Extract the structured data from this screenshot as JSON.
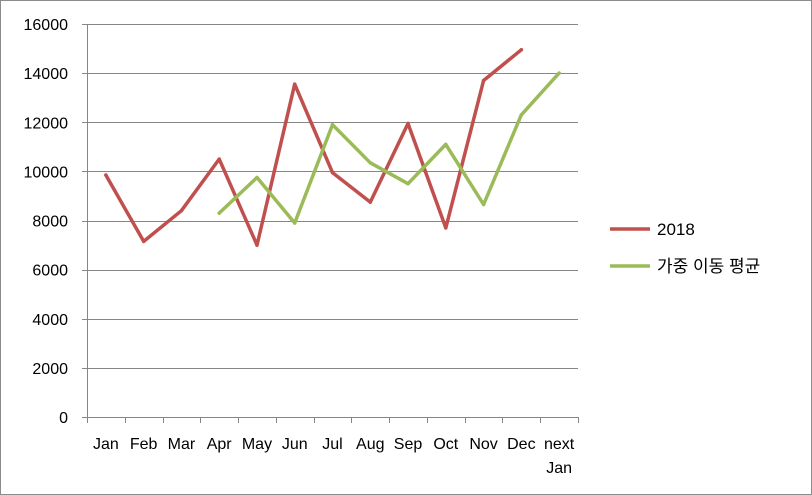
{
  "chart_data": {
    "type": "line",
    "categories": [
      "Jan",
      "Feb",
      "Mar",
      "Apr",
      "May",
      "Jun",
      "Jul",
      "Aug",
      "Sep",
      "Oct",
      "Nov",
      "Dec",
      "next Jan"
    ],
    "series": [
      {
        "name": "2018",
        "color": "#c0504d",
        "values": [
          9850,
          7150,
          8400,
          10500,
          7000,
          13550,
          9950,
          8750,
          11950,
          7700,
          13700,
          14950,
          null
        ]
      },
      {
        "name": "가중 이동 평균",
        "color": "#9bbb59",
        "values": [
          null,
          null,
          null,
          8300,
          9750,
          7900,
          11900,
          10350,
          9500,
          11100,
          8650,
          12300,
          14000
        ]
      }
    ],
    "y_ticks": [
      "0",
      "2000",
      "4000",
      "6000",
      "8000",
      "10000",
      "12000",
      "14000",
      "16000"
    ],
    "ylim": [
      0,
      16000
    ],
    "grid": true,
    "legend_position": "right",
    "title": "",
    "xlabel": "",
    "ylabel": ""
  }
}
